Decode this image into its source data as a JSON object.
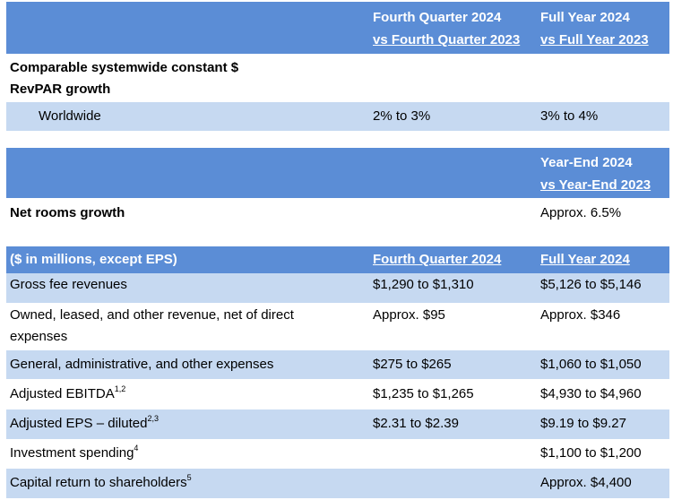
{
  "section1": {
    "header": {
      "col2_line1": "Fourth Quarter 2024",
      "col2_line2": "vs Fourth Quarter 2023",
      "col3_line1": "Full Year 2024",
      "col3_line2": "vs Full Year 2023"
    },
    "metric_line1": "Comparable systemwide constant $",
    "metric_line2": "RevPAR growth",
    "row": {
      "label": "Worldwide",
      "q4": "2% to 3%",
      "fy": "3% to 4%"
    }
  },
  "section2": {
    "header": {
      "col3_line1": "Year-End 2024",
      "col3_line2": "vs Year-End 2023"
    },
    "row": {
      "label": "Net rooms growth",
      "value": "Approx. 6.5%"
    }
  },
  "section3": {
    "header": {
      "col1": "($ in millions, except EPS)",
      "col2": "Fourth Quarter 2024",
      "col3": "Full Year 2024"
    },
    "rows": [
      {
        "label": "Gross fee revenues",
        "sup": "",
        "q4": "$1,290 to $1,310",
        "fy": "$5,126 to $5,146"
      },
      {
        "label": "Owned, leased, and other revenue, net of direct",
        "label2": "expenses",
        "sup": "",
        "q4": "Approx. $95",
        "fy": "Approx. $346"
      },
      {
        "label": "General, administrative, and other expenses",
        "sup": "",
        "q4": "$275 to $265",
        "fy": "$1,060 to $1,050"
      },
      {
        "label": "Adjusted EBITDA",
        "sup": "1,2",
        "q4": "$1,235 to $1,265",
        "fy": "$4,930 to $4,960"
      },
      {
        "label": "Adjusted EPS – diluted",
        "sup": "2,3",
        "q4": "$2.31 to $2.39",
        "fy": "$9.19 to $9.27"
      },
      {
        "label": "Investment spending",
        "sup": "4",
        "q4": "",
        "fy": "$1,100 to $1,200"
      },
      {
        "label": "Capital return to shareholders",
        "sup": "5",
        "q4": "",
        "fy": "Approx. $4,400"
      }
    ]
  },
  "colors": {
    "header_blue": "#5b8dd6",
    "light_blue": "#c6d9f1"
  }
}
